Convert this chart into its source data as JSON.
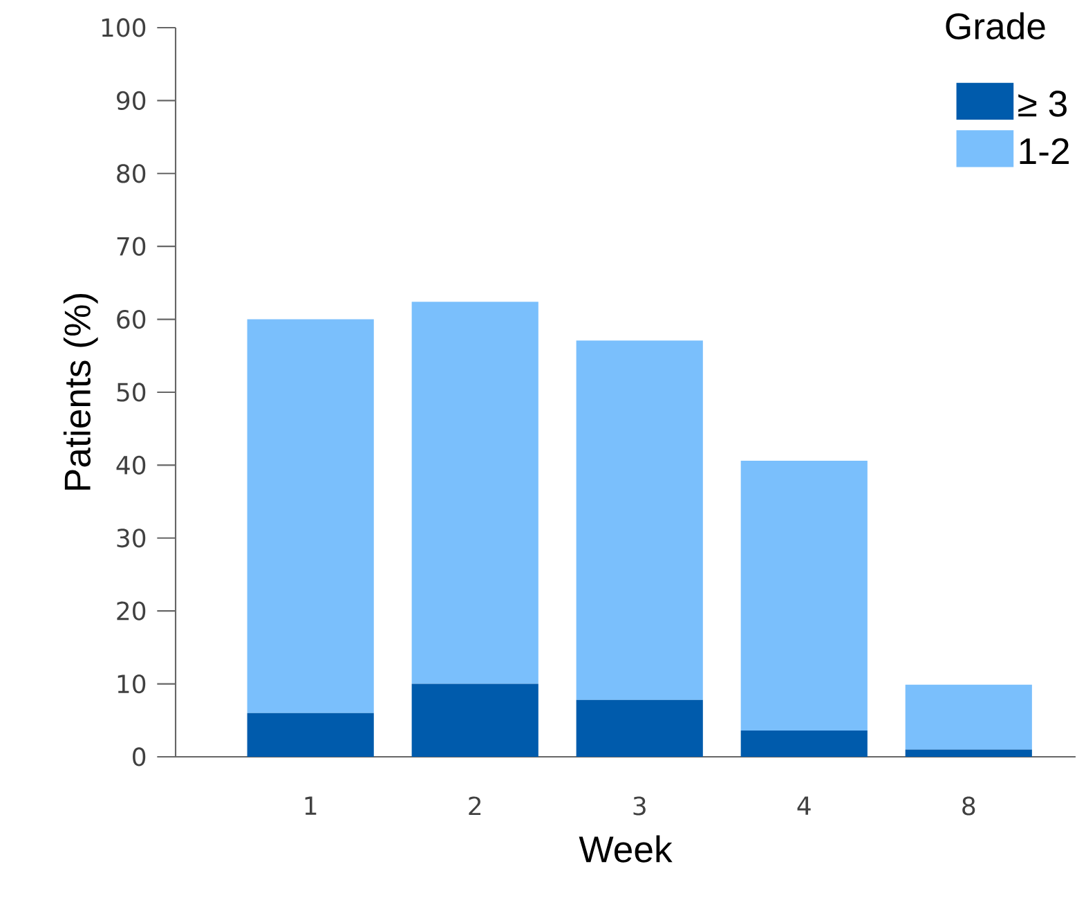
{
  "chart_data": {
    "type": "bar",
    "stacked": true,
    "xlabel": "Week",
    "ylabel": "Patients (%)",
    "legend_title": "Grade",
    "legend": "top right",
    "categories": [
      "1",
      "2",
      "3",
      "4",
      "8"
    ],
    "series": [
      {
        "name": "≥ 3",
        "color": "#005bac",
        "values": [
          6,
          10,
          7.8,
          3.6,
          1
        ]
      },
      {
        "name": "1-2",
        "color": "#7abffc",
        "values": [
          54,
          52.4,
          49.3,
          37,
          8.9
        ]
      }
    ],
    "ylim": [
      0,
      100
    ],
    "yticks": [
      0,
      10,
      20,
      30,
      40,
      50,
      60,
      70,
      80,
      90,
      100
    ]
  }
}
